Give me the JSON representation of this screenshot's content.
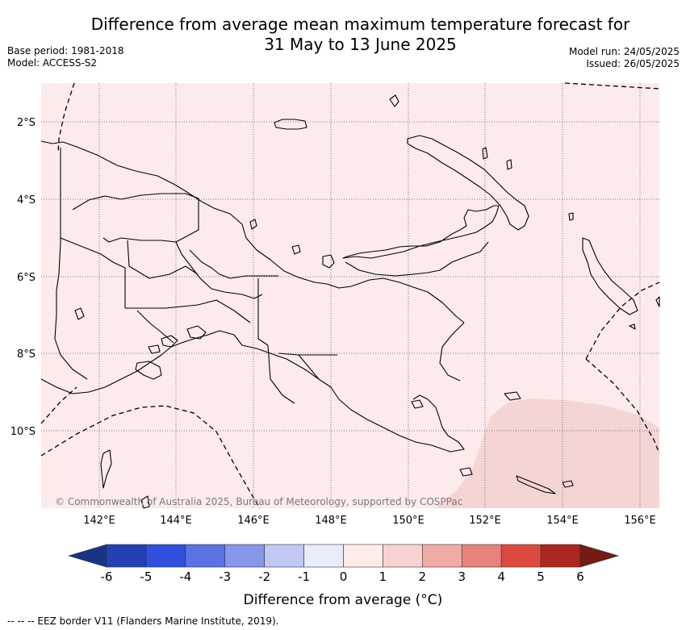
{
  "title_line1": "Difference from average mean maximum temperature forecast for",
  "title_line2": "31 May to 13 June 2025",
  "base_period": "Base period: 1981-2018",
  "model": "Model: ACCESS-S2",
  "model_run": "Model run: 24/05/2025",
  "issued": "Issued: 26/05/2025",
  "copyright": "© Commonwealth of Australia 2025, Bureau of Meteorology, supported by COSPPac",
  "lat_labels": [
    "2°S",
    "4°S",
    "6°S",
    "8°S",
    "10°S"
  ],
  "lon_labels": [
    "142°E",
    "144°E",
    "146°E",
    "148°E",
    "150°E",
    "152°E",
    "154°E",
    "156°E"
  ],
  "colorbar": {
    "title": "Difference from average (°C)",
    "ticks": [
      "-6",
      "-5",
      "-4",
      "-3",
      "-2",
      "-1",
      "0",
      "1",
      "2",
      "3",
      "4",
      "5",
      "6"
    ],
    "colors": [
      "#1b3385",
      "#2540b3",
      "#2f4fdc",
      "#5a72e3",
      "#8797ea",
      "#c0c8f4",
      "#e8ecfb",
      "#fdecea",
      "#f6d3d0",
      "#efaca6",
      "#e7837b",
      "#dc4a3e",
      "#ae2620",
      "#761a15"
    ]
  },
  "footer": "--  --  -- EEZ border V11 (Flanders Marine Institute, 2019).",
  "map_colors": {
    "background": "#fcebea",
    "warm_zone": "#f5d5d3",
    "land_line": "#000000"
  }
}
